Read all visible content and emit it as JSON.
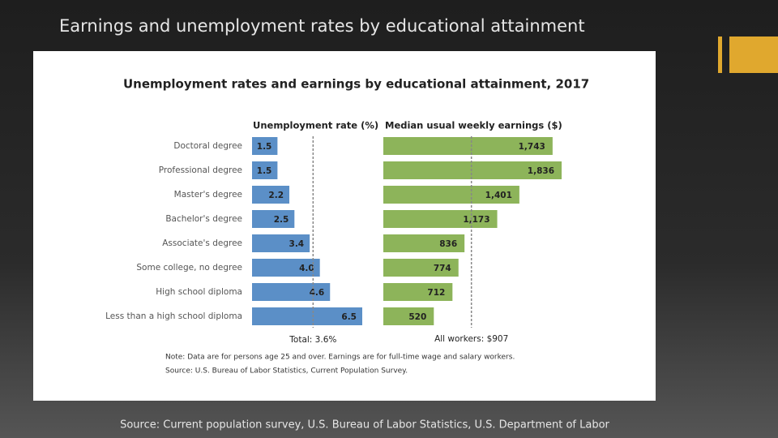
{
  "slide": {
    "title": "Earnings and unemployment rates by educational attainment",
    "source": "Source: Current population survey, U.S. Bureau of Labor Statistics, U.S. Department of Labor"
  },
  "chart_data": {
    "type": "bar",
    "title": "Unemployment rates and earnings by educational attainment, 2017",
    "categories": [
      "Doctoral degree",
      "Professional degree",
      "Master's degree",
      "Bachelor's degree",
      "Associate's degree",
      "Some college, no degree",
      "High school diploma",
      "Less than a high school diploma"
    ],
    "series": [
      {
        "name": "Unemployment rate (%)",
        "color": "#5b8fc7",
        "values": [
          1.5,
          1.5,
          2.2,
          2.5,
          3.4,
          4.0,
          4.6,
          6.5
        ],
        "value_labels": [
          "1.5",
          "1.5",
          "2.2",
          "2.5",
          "3.4",
          "4.0",
          "4.6",
          "6.5"
        ],
        "reference": 3.6,
        "reference_label": "Total: 3.6%"
      },
      {
        "name": "Median usual weekly earnings ($)",
        "color": "#8db45a",
        "values": [
          1743,
          1836,
          1401,
          1173,
          836,
          774,
          712,
          520
        ],
        "value_labels": [
          "1,743",
          "1,836",
          "1,401",
          "1,173",
          "836",
          "774",
          "712",
          "520"
        ],
        "reference": 907,
        "reference_label": "All workers: $907"
      }
    ],
    "notes": [
      "Note: Data are for persons age 25 and over. Earnings are for full-time wage and salary workers.",
      "Source: U.S. Bureau of Labor Statistics, Current Population Survey."
    ]
  }
}
